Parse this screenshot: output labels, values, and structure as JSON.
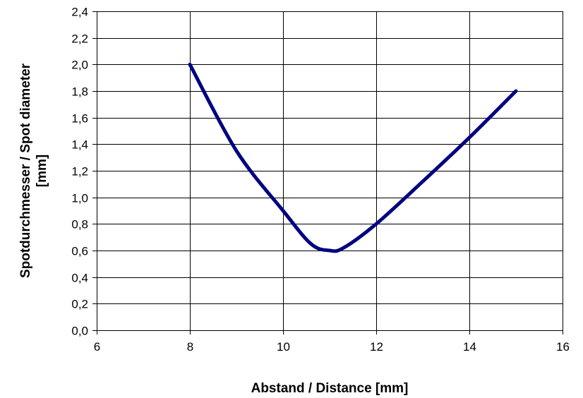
{
  "chart_data": {
    "type": "line",
    "title": "",
    "xlabel": "Abstand / Distance [mm]",
    "ylabel_lines": [
      "Spotdurchmesser / Spot diameter",
      "[mm]"
    ],
    "xlim": [
      6,
      16
    ],
    "ylim": [
      0.0,
      2.4
    ],
    "x_ticks": [
      6,
      8,
      10,
      12,
      14,
      16
    ],
    "x_tick_labels": [
      "6",
      "8",
      "10",
      "12",
      "14",
      "16"
    ],
    "y_ticks": [
      0.0,
      0.2,
      0.4,
      0.6,
      0.8,
      1.0,
      1.2,
      1.4,
      1.6,
      1.8,
      2.0,
      2.2,
      2.4
    ],
    "y_tick_labels": [
      "0,0",
      "0,2",
      "0,4",
      "0,6",
      "0,8",
      "1,0",
      "1,2",
      "1,4",
      "1,6",
      "1,8",
      "2,0",
      "2,2",
      "2,4"
    ],
    "grid": true,
    "legend": false,
    "series": [
      {
        "color": "#000080",
        "x": [
          8,
          9,
          10,
          10.6,
          11,
          11.3,
          12,
          13,
          14,
          15
        ],
        "y": [
          2.0,
          1.35,
          0.9,
          0.65,
          0.6,
          0.62,
          0.8,
          1.12,
          1.45,
          1.8
        ]
      }
    ]
  }
}
